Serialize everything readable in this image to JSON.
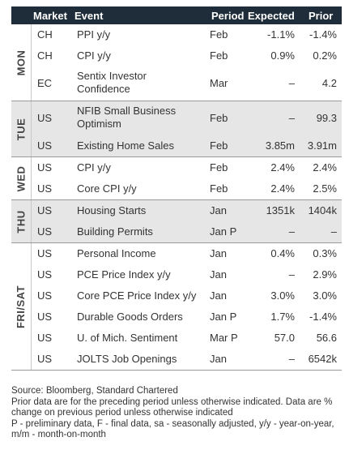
{
  "header": {
    "market": "Market",
    "event": "Event",
    "period": "Period",
    "expected": "Expected",
    "prior": "Prior"
  },
  "groups": [
    {
      "day": "MON",
      "rows": [
        {
          "market": "CH",
          "event": [
            "PPI y/y"
          ],
          "period": "Feb",
          "expected": "-1.1%",
          "prior": "-1.4%"
        },
        {
          "market": "CH",
          "event": [
            "CPI y/y"
          ],
          "period": "Feb",
          "expected": "0.9%",
          "prior": "0.2%"
        },
        {
          "market": "EC",
          "event": [
            "Sentix Investor",
            "Confidence"
          ],
          "period": "Mar",
          "expected": "–",
          "prior": "4.2"
        }
      ]
    },
    {
      "day": "TUE",
      "rows": [
        {
          "market": "US",
          "event": [
            "NFIB Small Business",
            "Optimism"
          ],
          "period": "Feb",
          "expected": "–",
          "prior": "99.3"
        },
        {
          "market": "US",
          "event": [
            "Existing Home Sales"
          ],
          "period": "Feb",
          "expected": "3.85m",
          "prior": "3.91m"
        }
      ]
    },
    {
      "day": "WED",
      "rows": [
        {
          "market": "US",
          "event": [
            "CPI y/y"
          ],
          "period": "Feb",
          "expected": "2.4%",
          "prior": "2.4%"
        },
        {
          "market": "US",
          "event": [
            "Core CPI y/y"
          ],
          "period": "Feb",
          "expected": "2.4%",
          "prior": "2.5%"
        }
      ]
    },
    {
      "day": "THU",
      "rows": [
        {
          "market": "US",
          "event": [
            "Housing Starts"
          ],
          "period": "Jan",
          "expected": "1351k",
          "prior": "1404k"
        },
        {
          "market": "US",
          "event": [
            "Building Permits"
          ],
          "period": "Jan P",
          "expected": "–",
          "prior": "–"
        }
      ]
    },
    {
      "day": "FRI/SAT",
      "rows": [
        {
          "market": "US",
          "event": [
            "Personal Income"
          ],
          "period": "Jan",
          "expected": "0.4%",
          "prior": "0.3%"
        },
        {
          "market": "US",
          "event": [
            "PCE Price Index y/y"
          ],
          "period": "Jan",
          "expected": "–",
          "prior": "2.9%"
        },
        {
          "market": "US",
          "event": [
            "Core PCE Price Index y/y"
          ],
          "period": "Jan",
          "expected": "3.0%",
          "prior": "3.0%"
        },
        {
          "market": "US",
          "event": [
            "Durable Goods Orders"
          ],
          "period": "Jan P",
          "expected": "1.7%",
          "prior": "-1.4%"
        },
        {
          "market": "US",
          "event": [
            "U. of Mich. Sentiment"
          ],
          "period": "Mar P",
          "expected": "57.0",
          "prior": "56.6"
        },
        {
          "market": "US",
          "event": [
            "JOLTS Job Openings"
          ],
          "period": "Jan",
          "expected": "–",
          "prior": "6542k"
        }
      ]
    }
  ],
  "footnotes": [
    "Source: Bloomberg, Standard Chartered",
    "Prior data are for the preceding period unless otherwise indicated. Data are % change on previous period unless otherwise indicated",
    "P - preliminary data, F - final data, sa - seasonally adjusted, y/y - year-on-year, m/m - month-on-month"
  ]
}
